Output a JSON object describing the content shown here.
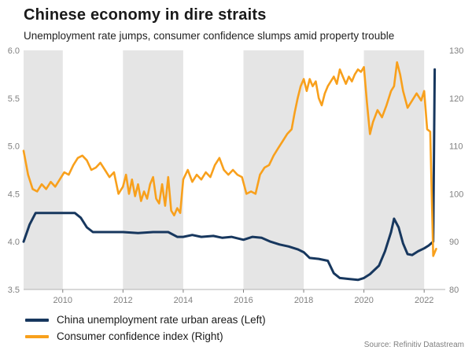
{
  "header": {
    "title": "Chinese economy in dire straits",
    "subtitle": "Unemployment rate jumps, consumer confidence slumps amid property trouble"
  },
  "source": "Source: Refinitiv Datastream",
  "colors": {
    "unemployment_line": "#17375e",
    "confidence_line": "#f8a01c",
    "band": "#e5e5e5",
    "axis_text": "#808080",
    "axis_line": "#b3b3b3"
  },
  "chart_data": {
    "type": "line",
    "title": "Chinese economy in dire straits",
    "subtitle": "Unemployment rate jumps, consumer confidence slumps amid property trouble",
    "x_range": [
      2008.7,
      2022.7
    ],
    "x_ticks": [
      2010,
      2012,
      2014,
      2016,
      2018,
      2020,
      2022
    ],
    "left_axis": {
      "range": [
        3.5,
        6.0
      ],
      "ticks": [
        3.5,
        4.0,
        4.5,
        5.0,
        5.5,
        6.0
      ]
    },
    "right_axis": {
      "range": [
        80,
        130
      ],
      "ticks": [
        80,
        90,
        100,
        110,
        120,
        130
      ]
    },
    "shaded_bands": [
      [
        2008.7,
        2010
      ],
      [
        2012,
        2014
      ],
      [
        2016,
        2018
      ],
      [
        2020,
        2022
      ]
    ],
    "legend_position": "bottom-left",
    "grid": false,
    "series": [
      {
        "name": "China unemployment rate urban areas (Left)",
        "axis": "left",
        "color": "#17375e",
        "width": 3,
        "points": [
          [
            2008.7,
            4.0
          ],
          [
            2008.9,
            4.18
          ],
          [
            2009.1,
            4.3
          ],
          [
            2009.5,
            4.3
          ],
          [
            2010.0,
            4.3
          ],
          [
            2010.4,
            4.3
          ],
          [
            2010.6,
            4.25
          ],
          [
            2010.8,
            4.15
          ],
          [
            2011.0,
            4.1
          ],
          [
            2011.5,
            4.1
          ],
          [
            2012.0,
            4.1
          ],
          [
            2012.5,
            4.09
          ],
          [
            2013.0,
            4.1
          ],
          [
            2013.5,
            4.1
          ],
          [
            2013.8,
            4.05
          ],
          [
            2014.0,
            4.05
          ],
          [
            2014.3,
            4.07
          ],
          [
            2014.6,
            4.05
          ],
          [
            2015.0,
            4.06
          ],
          [
            2015.3,
            4.04
          ],
          [
            2015.6,
            4.05
          ],
          [
            2016.0,
            4.02
          ],
          [
            2016.3,
            4.05
          ],
          [
            2016.6,
            4.04
          ],
          [
            2016.9,
            4.0
          ],
          [
            2017.2,
            3.97
          ],
          [
            2017.5,
            3.95
          ],
          [
            2017.8,
            3.92
          ],
          [
            2018.0,
            3.89
          ],
          [
            2018.2,
            3.83
          ],
          [
            2018.5,
            3.82
          ],
          [
            2018.8,
            3.8
          ],
          [
            2019.0,
            3.67
          ],
          [
            2019.2,
            3.62
          ],
          [
            2019.5,
            3.61
          ],
          [
            2019.8,
            3.6
          ],
          [
            2020.0,
            3.62
          ],
          [
            2020.2,
            3.66
          ],
          [
            2020.5,
            3.75
          ],
          [
            2020.7,
            3.9
          ],
          [
            2020.9,
            4.1
          ],
          [
            2021.0,
            4.24
          ],
          [
            2021.15,
            4.15
          ],
          [
            2021.3,
            3.98
          ],
          [
            2021.45,
            3.87
          ],
          [
            2021.6,
            3.86
          ],
          [
            2021.8,
            3.9
          ],
          [
            2022.0,
            3.93
          ],
          [
            2022.15,
            3.96
          ],
          [
            2022.3,
            4.0
          ],
          [
            2022.35,
            5.8
          ]
        ]
      },
      {
        "name": "Consumer confidence index (Right)",
        "axis": "right",
        "color": "#f8a01c",
        "width": 2.6,
        "points": [
          [
            2008.7,
            109
          ],
          [
            2008.85,
            104
          ],
          [
            2009.0,
            101
          ],
          [
            2009.15,
            100.5
          ],
          [
            2009.3,
            102
          ],
          [
            2009.45,
            101
          ],
          [
            2009.6,
            102.5
          ],
          [
            2009.75,
            101.5
          ],
          [
            2009.9,
            103
          ],
          [
            2010.05,
            104.5
          ],
          [
            2010.2,
            104
          ],
          [
            2010.35,
            106
          ],
          [
            2010.5,
            107.5
          ],
          [
            2010.65,
            108
          ],
          [
            2010.8,
            107
          ],
          [
            2010.95,
            105
          ],
          [
            2011.1,
            105.5
          ],
          [
            2011.25,
            106.5
          ],
          [
            2011.4,
            105
          ],
          [
            2011.55,
            103.5
          ],
          [
            2011.7,
            104.5
          ],
          [
            2011.85,
            100
          ],
          [
            2012.0,
            101.5
          ],
          [
            2012.1,
            104
          ],
          [
            2012.2,
            100
          ],
          [
            2012.3,
            103
          ],
          [
            2012.4,
            99.5
          ],
          [
            2012.5,
            102
          ],
          [
            2012.6,
            98.5
          ],
          [
            2012.7,
            100.5
          ],
          [
            2012.8,
            99
          ],
          [
            2012.9,
            102
          ],
          [
            2013.0,
            103.5
          ],
          [
            2013.1,
            99
          ],
          [
            2013.2,
            98
          ],
          [
            2013.3,
            102
          ],
          [
            2013.4,
            97.5
          ],
          [
            2013.5,
            103.5
          ],
          [
            2013.6,
            96.5
          ],
          [
            2013.7,
            95.5
          ],
          [
            2013.8,
            97
          ],
          [
            2013.9,
            96
          ],
          [
            2014.0,
            103
          ],
          [
            2014.15,
            105
          ],
          [
            2014.3,
            102.5
          ],
          [
            2014.45,
            104
          ],
          [
            2014.6,
            103
          ],
          [
            2014.75,
            104.5
          ],
          [
            2014.9,
            103.5
          ],
          [
            2015.05,
            106
          ],
          [
            2015.2,
            107.5
          ],
          [
            2015.35,
            105
          ],
          [
            2015.5,
            104
          ],
          [
            2015.65,
            105
          ],
          [
            2015.8,
            104
          ],
          [
            2015.95,
            103.5
          ],
          [
            2016.1,
            100
          ],
          [
            2016.25,
            100.5
          ],
          [
            2016.4,
            100
          ],
          [
            2016.55,
            104
          ],
          [
            2016.7,
            105.5
          ],
          [
            2016.85,
            106
          ],
          [
            2017.0,
            108
          ],
          [
            2017.15,
            109.5
          ],
          [
            2017.3,
            111
          ],
          [
            2017.45,
            112.5
          ],
          [
            2017.6,
            113.5
          ],
          [
            2017.7,
            117
          ],
          [
            2017.8,
            120
          ],
          [
            2017.9,
            122.5
          ],
          [
            2018.0,
            124
          ],
          [
            2018.1,
            121.5
          ],
          [
            2018.2,
            124
          ],
          [
            2018.3,
            122.5
          ],
          [
            2018.4,
            123.5
          ],
          [
            2018.5,
            120
          ],
          [
            2018.6,
            118.5
          ],
          [
            2018.7,
            121
          ],
          [
            2018.8,
            122.5
          ],
          [
            2018.9,
            123.5
          ],
          [
            2019.0,
            124.5
          ],
          [
            2019.1,
            123
          ],
          [
            2019.2,
            126
          ],
          [
            2019.3,
            124.5
          ],
          [
            2019.4,
            123
          ],
          [
            2019.5,
            124.5
          ],
          [
            2019.6,
            123.5
          ],
          [
            2019.7,
            125
          ],
          [
            2019.8,
            126
          ],
          [
            2019.9,
            125.5
          ],
          [
            2020.0,
            126.5
          ],
          [
            2020.1,
            119
          ],
          [
            2020.2,
            112.5
          ],
          [
            2020.3,
            115
          ],
          [
            2020.45,
            117.5
          ],
          [
            2020.6,
            116
          ],
          [
            2020.75,
            118.5
          ],
          [
            2020.9,
            121.5
          ],
          [
            2021.0,
            122.5
          ],
          [
            2021.1,
            127.5
          ],
          [
            2021.2,
            125
          ],
          [
            2021.3,
            121.5
          ],
          [
            2021.45,
            118
          ],
          [
            2021.6,
            119.5
          ],
          [
            2021.75,
            121
          ],
          [
            2021.9,
            119.5
          ],
          [
            2022.0,
            121.5
          ],
          [
            2022.1,
            113.5
          ],
          [
            2022.2,
            113
          ],
          [
            2022.3,
            87
          ],
          [
            2022.4,
            88.5
          ]
        ]
      }
    ]
  }
}
